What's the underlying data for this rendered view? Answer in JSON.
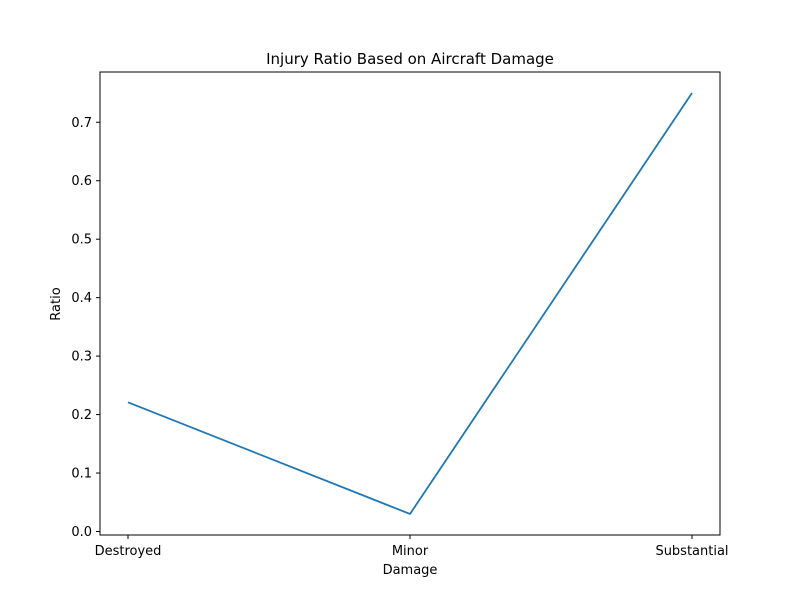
{
  "chart_data": {
    "type": "line",
    "title": "Injury Ratio Based on Aircraft Damage",
    "xlabel": "Damage",
    "ylabel": "Ratio",
    "categories": [
      "Destroyed",
      "Minor",
      "Substantial"
    ],
    "series": [
      {
        "values": [
          0.221,
          0.03,
          0.75
        ],
        "color": "#1f77b4"
      }
    ],
    "ylim": [
      -0.006,
      0.786
    ],
    "yticks": [
      0.0,
      0.1,
      0.2,
      0.3,
      0.4,
      0.5,
      0.6,
      0.7
    ],
    "ytick_labels": [
      "0.0",
      "0.1",
      "0.2",
      "0.3",
      "0.4",
      "0.5",
      "0.6",
      "0.7"
    ],
    "grid": false,
    "legend": "none"
  }
}
